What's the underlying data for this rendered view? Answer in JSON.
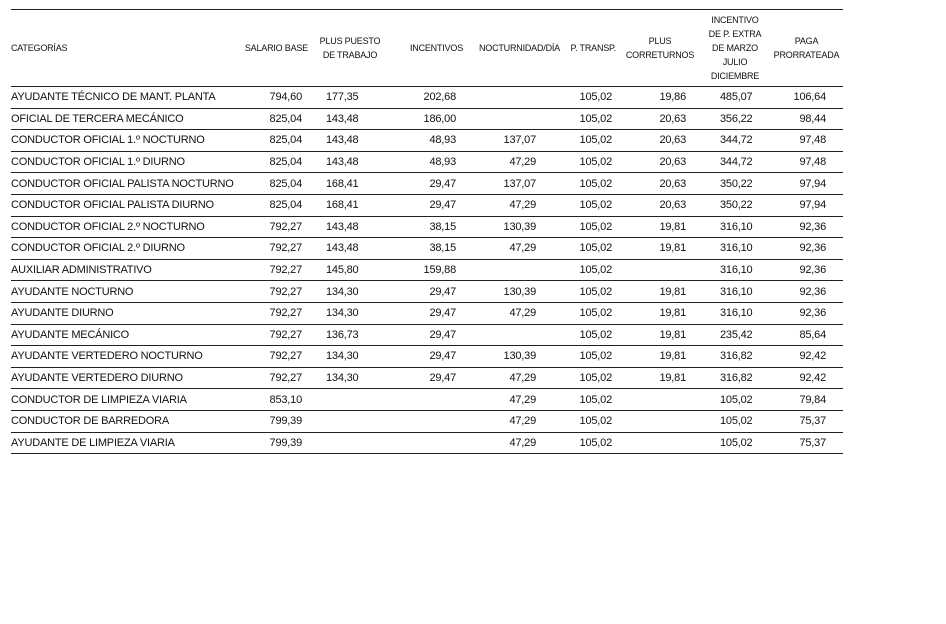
{
  "table": {
    "headers": [
      "CATEGORÍAS",
      "SALARIO BASE",
      "PLUS PUESTO\nDE TRABAJO",
      "INCENTIVOS",
      "NOCTURNIDAD/DÍA",
      "P. TRANSP.",
      "PLUS\nCORRETURNOS",
      "INCENTIVO\nDE P. EXTRA\nDE MARZO\nJULIO\nDICIEMBRE",
      "PAGA\nPRORRATEADA"
    ],
    "rows": [
      [
        "AYUDANTE TÉCNICO DE MANT. PLANTA",
        "794,60",
        "177,35",
        "202,68",
        "",
        "105,02",
        "19,86",
        "485,07",
        "106,64"
      ],
      [
        "OFICIAL DE TERCERA MECÁNICO",
        "825,04",
        "143,48",
        "186,00",
        "",
        "105,02",
        "20,63",
        "356,22",
        "98,44"
      ],
      [
        "CONDUCTOR OFICIAL 1.º NOCTURNO",
        "825,04",
        "143,48",
        "48,93",
        "137,07",
        "105,02",
        "20,63",
        "344,72",
        "97,48"
      ],
      [
        "CONDUCTOR OFICIAL 1.º DIURNO",
        "825,04",
        "143,48",
        "48,93",
        "47,29",
        "105,02",
        "20,63",
        "344,72",
        "97,48"
      ],
      [
        "CONDUCTOR OFICIAL PALISTA NOCTURNO",
        "825,04",
        "168,41",
        "29,47",
        "137,07",
        "105,02",
        "20,63",
        "350,22",
        "97,94"
      ],
      [
        "CONDUCTOR OFICIAL PALISTA DIURNO",
        "825,04",
        "168,41",
        "29,47",
        "47,29",
        "105,02",
        "20,63",
        "350,22",
        "97,94"
      ],
      [
        "CONDUCTOR OFICIAL 2.º NOCTURNO",
        "792,27",
        "143,48",
        "38,15",
        "130,39",
        "105,02",
        "19,81",
        "316,10",
        "92,36"
      ],
      [
        "CONDUCTOR OFICIAL 2.º DIURNO",
        "792,27",
        "143,48",
        "38,15",
        "47,29",
        "105,02",
        "19,81",
        "316,10",
        "92,36"
      ],
      [
        "AUXILIAR ADMINISTRATIVO",
        "792,27",
        "145,80",
        "159,88",
        "",
        "105,02",
        "",
        "316,10",
        "92,36"
      ],
      [
        "AYUDANTE NOCTURNO",
        "792,27",
        "134,30",
        "29,47",
        "130,39",
        "105,02",
        "19,81",
        "316,10",
        "92,36"
      ],
      [
        "AYUDANTE DIURNO",
        "792,27",
        "134,30",
        "29,47",
        "47,29",
        "105,02",
        "19,81",
        "316,10",
        "92,36"
      ],
      [
        "AYUDANTE MECÁNICO",
        "792,27",
        "136,73",
        "29,47",
        "",
        "105,02",
        "19,81",
        "235,42",
        "85,64"
      ],
      [
        "AYUDANTE VERTEDERO NOCTURNO",
        "792,27",
        "134,30",
        "29,47",
        "130,39",
        "105,02",
        "19,81",
        "316,82",
        "92,42"
      ],
      [
        "AYUDANTE VERTEDERO DIURNO",
        "792,27",
        "134,30",
        "29,47",
        "47,29",
        "105,02",
        "19,81",
        "316,82",
        "92,42"
      ],
      [
        "CONDUCTOR DE LIMPIEZA VIARIA",
        "853,10",
        "",
        "",
        "47,29",
        "105,02",
        "",
        "105,02",
        "79,84"
      ],
      [
        "CONDUCTOR DE BARREDORA",
        "799,39",
        "",
        "",
        "47,29",
        "105,02",
        "",
        "105,02",
        "75,37"
      ],
      [
        "AYUDANTE DE LIMPIEZA VIARIA",
        "799,39",
        "",
        "",
        "47,29",
        "105,02",
        "",
        "105,02",
        "75,37"
      ]
    ]
  }
}
